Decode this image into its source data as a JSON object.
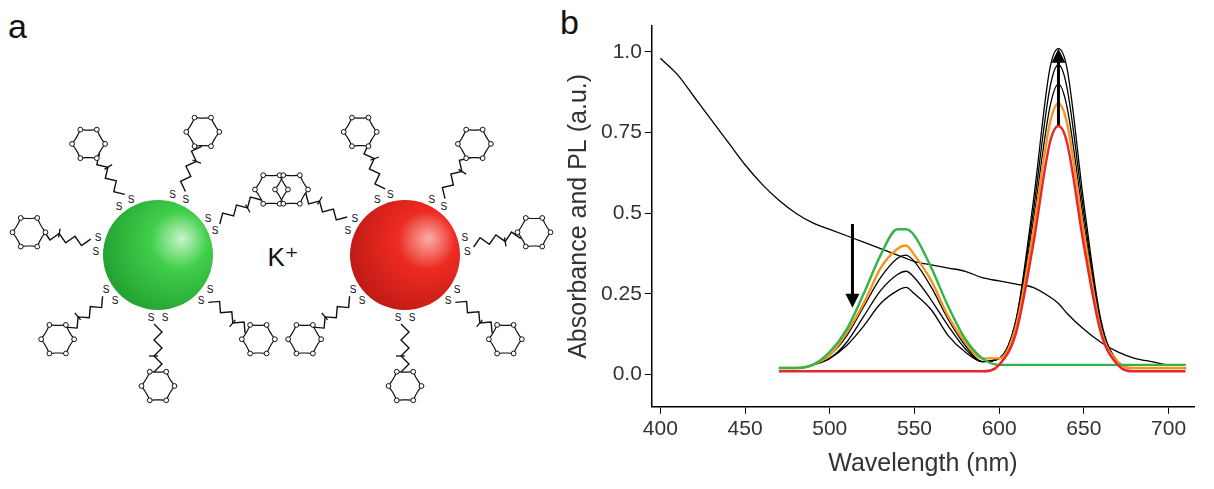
{
  "panel_a": {
    "label": "a",
    "ion": "K⁺",
    "atom": "S"
  },
  "chart_data": {
    "type": "line",
    "panel_label": "b",
    "x_label": "Wavelength (nm)",
    "y_label": "Absorbance and PL (a.u.)",
    "x": [
      400,
      410,
      420,
      430,
      440,
      450,
      460,
      470,
      480,
      490,
      500,
      510,
      520,
      530,
      540,
      545,
      550,
      560,
      570,
      580,
      590,
      600,
      610,
      620,
      630,
      635,
      640,
      650,
      660,
      670,
      680,
      690,
      700,
      710
    ],
    "series": [
      {
        "color": "#000000",
        "values": [
          0.98,
          0.93,
          0.86,
          0.79,
          0.72,
          0.65,
          0.59,
          0.54,
          0.5,
          0.47,
          0.45,
          0.43,
          0.41,
          0.39,
          0.37,
          0.36,
          0.35,
          0.34,
          0.33,
          0.32,
          0.3,
          0.29,
          0.28,
          0.27,
          0.24,
          0.22,
          0.19,
          0.14,
          0.1,
          0.07,
          0.05,
          0.04,
          0.03,
          0.03
        ]
      },
      {
        "color": "#000000",
        "values": [
          null,
          null,
          null,
          null,
          null,
          null,
          null,
          0.02,
          0.02,
          0.03,
          0.06,
          0.12,
          0.21,
          0.3,
          0.36,
          0.37,
          0.35,
          0.27,
          0.17,
          0.09,
          0.04,
          0.05,
          0.16,
          0.47,
          0.83,
          0.9,
          0.83,
          0.47,
          0.15,
          0.04,
          0.02,
          0.02,
          0.02,
          0.02
        ]
      },
      {
        "color": "#000000",
        "values": [
          null,
          null,
          null,
          null,
          null,
          null,
          null,
          0.02,
          0.02,
          0.03,
          0.05,
          0.1,
          0.18,
          0.26,
          0.31,
          0.32,
          0.3,
          0.23,
          0.15,
          0.08,
          0.04,
          0.05,
          0.17,
          0.5,
          0.89,
          0.96,
          0.89,
          0.5,
          0.16,
          0.04,
          0.02,
          0.02,
          0.02,
          0.02
        ]
      },
      {
        "color": "#000000",
        "values": [
          null,
          null,
          null,
          null,
          null,
          null,
          null,
          0.02,
          0.02,
          0.03,
          0.05,
          0.09,
          0.15,
          0.22,
          0.26,
          0.27,
          0.25,
          0.2,
          0.12,
          0.07,
          0.04,
          0.05,
          0.17,
          0.53,
          0.95,
          1.01,
          0.95,
          0.53,
          0.17,
          0.04,
          0.02,
          0.02,
          0.02,
          0.02
        ]
      },
      {
        "color": "#f7941d",
        "values": [
          null,
          null,
          null,
          null,
          null,
          null,
          null,
          0.02,
          0.02,
          0.03,
          0.06,
          0.13,
          0.22,
          0.33,
          0.39,
          0.4,
          0.37,
          0.29,
          0.18,
          0.1,
          0.05,
          0.05,
          0.15,
          0.44,
          0.78,
          0.84,
          0.78,
          0.44,
          0.14,
          0.04,
          0.02,
          0.02,
          0.02,
          0.02
        ]
      },
      {
        "color": "#33b449",
        "values": [
          null,
          null,
          null,
          null,
          null,
          null,
          null,
          0.02,
          0.02,
          0.03,
          0.07,
          0.14,
          0.25,
          0.37,
          0.45,
          0.45,
          0.43,
          0.33,
          0.21,
          0.11,
          0.05,
          0.03,
          0.03,
          0.03,
          0.03,
          0.03,
          0.03,
          0.03,
          0.03,
          0.03,
          0.03,
          0.03,
          0.03,
          0.03
        ]
      },
      {
        "color": "#e8262b",
        "values": [
          null,
          null,
          null,
          null,
          null,
          null,
          null,
          0.01,
          0.01,
          0.01,
          0.01,
          0.01,
          0.01,
          0.01,
          0.01,
          0.01,
          0.01,
          0.01,
          0.01,
          0.01,
          0.01,
          0.03,
          0.13,
          0.4,
          0.72,
          0.77,
          0.72,
          0.4,
          0.13,
          0.03,
          0.01,
          0.01,
          0.01,
          0.01
        ]
      }
    ],
    "xlim": [
      395,
      715
    ],
    "xticks": [
      400,
      450,
      500,
      550,
      600,
      650,
      700
    ],
    "ylim": [
      -0.1,
      1.08
    ],
    "yticks": [
      {
        "value": 0,
        "label": "0.0"
      },
      0.25,
      0.5,
      0.75,
      {
        "value": 1,
        "label": "1.0"
      }
    ],
    "grid": false
  }
}
